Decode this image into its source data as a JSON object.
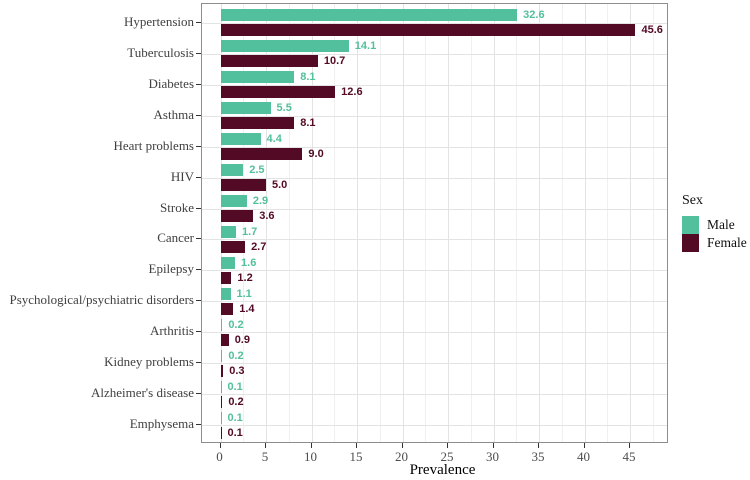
{
  "chart_data": {
    "type": "bar",
    "orientation": "horizontal",
    "title": "",
    "xlabel": "Prevalence",
    "ylabel": "",
    "categories": [
      "Hypertension",
      "Tuberculosis",
      "Diabetes",
      "Asthma",
      "Heart problems",
      "HIV",
      "Stroke",
      "Cancer",
      "Epilepsy",
      "Psychological/psychiatric disorders",
      "Arthritis",
      "Kidney problems",
      "Alzheimer's disease",
      "Emphysema"
    ],
    "series": [
      {
        "name": "Male",
        "color": "#53C09D",
        "values": [
          32.6,
          14.1,
          8.1,
          5.5,
          4.4,
          2.5,
          2.9,
          1.7,
          1.6,
          1.1,
          0.2,
          0.2,
          0.1,
          0.1
        ]
      },
      {
        "name": "Female",
        "color": "#530A25",
        "values": [
          45.6,
          10.7,
          12.6,
          8.1,
          9.0,
          5.0,
          3.6,
          2.7,
          1.2,
          1.4,
          0.9,
          0.3,
          0.2,
          0.1
        ]
      }
    ],
    "x_ticks": [
      0,
      5,
      10,
      15,
      20,
      25,
      30,
      35,
      40,
      45
    ],
    "x_minor_step": 2.5,
    "xlim": [
      -2.5,
      49.2
    ],
    "grid": true,
    "value_labels": true,
    "legend": {
      "title": "Sex",
      "position": "right",
      "entries": [
        "Male",
        "Female"
      ]
    }
  }
}
